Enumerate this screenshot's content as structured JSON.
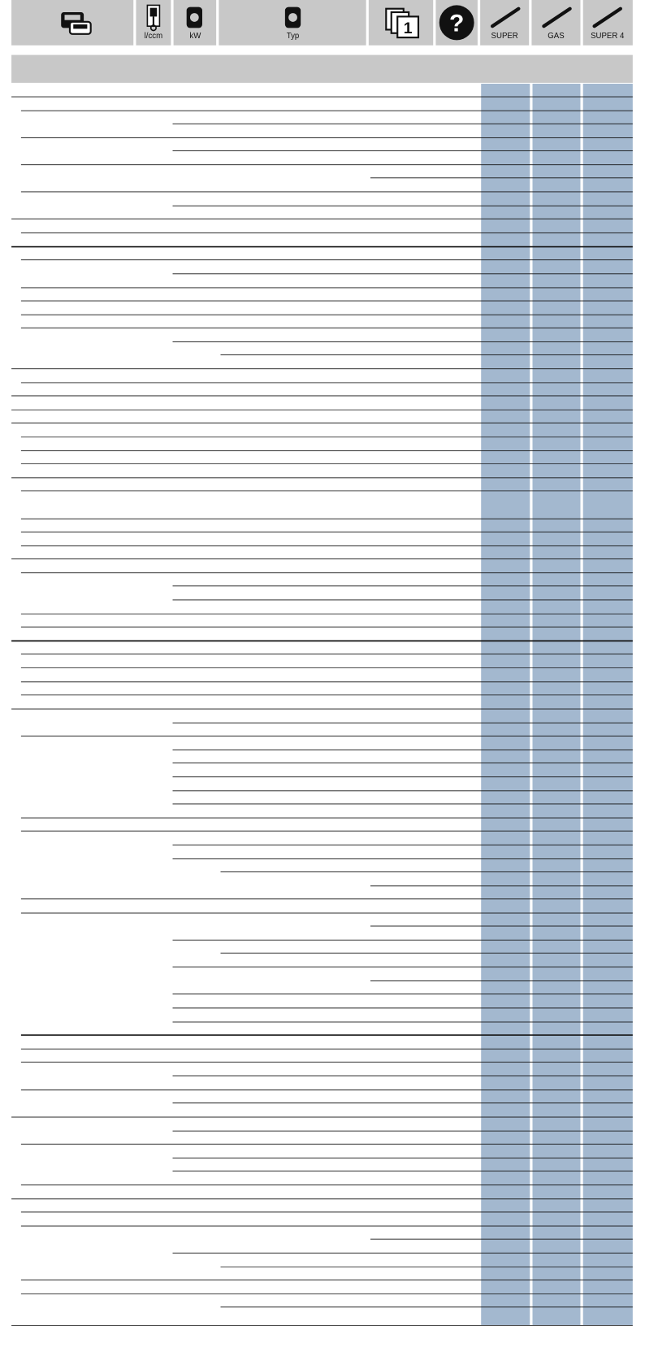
{
  "header": {
    "displacement": "l/ccm",
    "power": "kW",
    "engine_type": "Typ",
    "super": "SUPER",
    "gas": "GAS",
    "super4": "SUPER 4"
  }
}
